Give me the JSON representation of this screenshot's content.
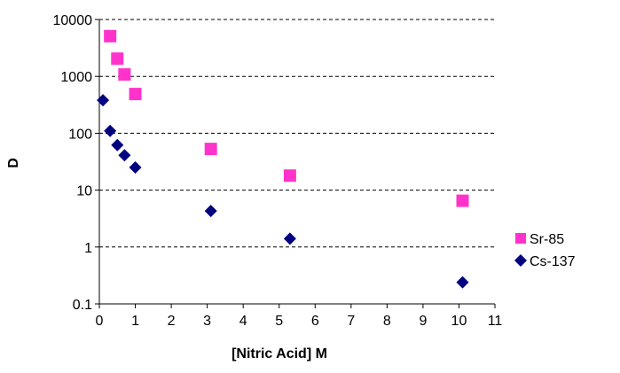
{
  "chart_data": {
    "type": "scatter",
    "xlabel": "[Nitric Acid] M",
    "ylabel": "D",
    "xlim": [
      0,
      11
    ],
    "ylim": [
      0.1,
      10000
    ],
    "yscale": "log",
    "x_ticks": [
      "0",
      "1",
      "2",
      "3",
      "4",
      "5",
      "6",
      "7",
      "8",
      "9",
      "10",
      "11"
    ],
    "y_ticks": [
      "0.1",
      "1",
      "10",
      "100",
      "1000",
      "10000"
    ],
    "grid": "horizontal dashed major gridlines",
    "legend_position": "right",
    "series": [
      {
        "name": "Sr-85",
        "marker": "square",
        "color": "#FF33CC",
        "points": [
          {
            "x": 0.3,
            "y": 5100
          },
          {
            "x": 0.5,
            "y": 2050
          },
          {
            "x": 0.7,
            "y": 1080
          },
          {
            "x": 1.0,
            "y": 490
          },
          {
            "x": 3.1,
            "y": 53
          },
          {
            "x": 5.3,
            "y": 18
          },
          {
            "x": 10.1,
            "y": 6.5
          }
        ]
      },
      {
        "name": "Cs-137",
        "marker": "diamond",
        "color": "#000080",
        "points": [
          {
            "x": 0.1,
            "y": 380
          },
          {
            "x": 0.3,
            "y": 110
          },
          {
            "x": 0.5,
            "y": 62
          },
          {
            "x": 0.7,
            "y": 41
          },
          {
            "x": 1.0,
            "y": 25
          },
          {
            "x": 3.1,
            "y": 4.3
          },
          {
            "x": 5.3,
            "y": 1.4
          },
          {
            "x": 10.1,
            "y": 0.24
          }
        ]
      }
    ]
  }
}
